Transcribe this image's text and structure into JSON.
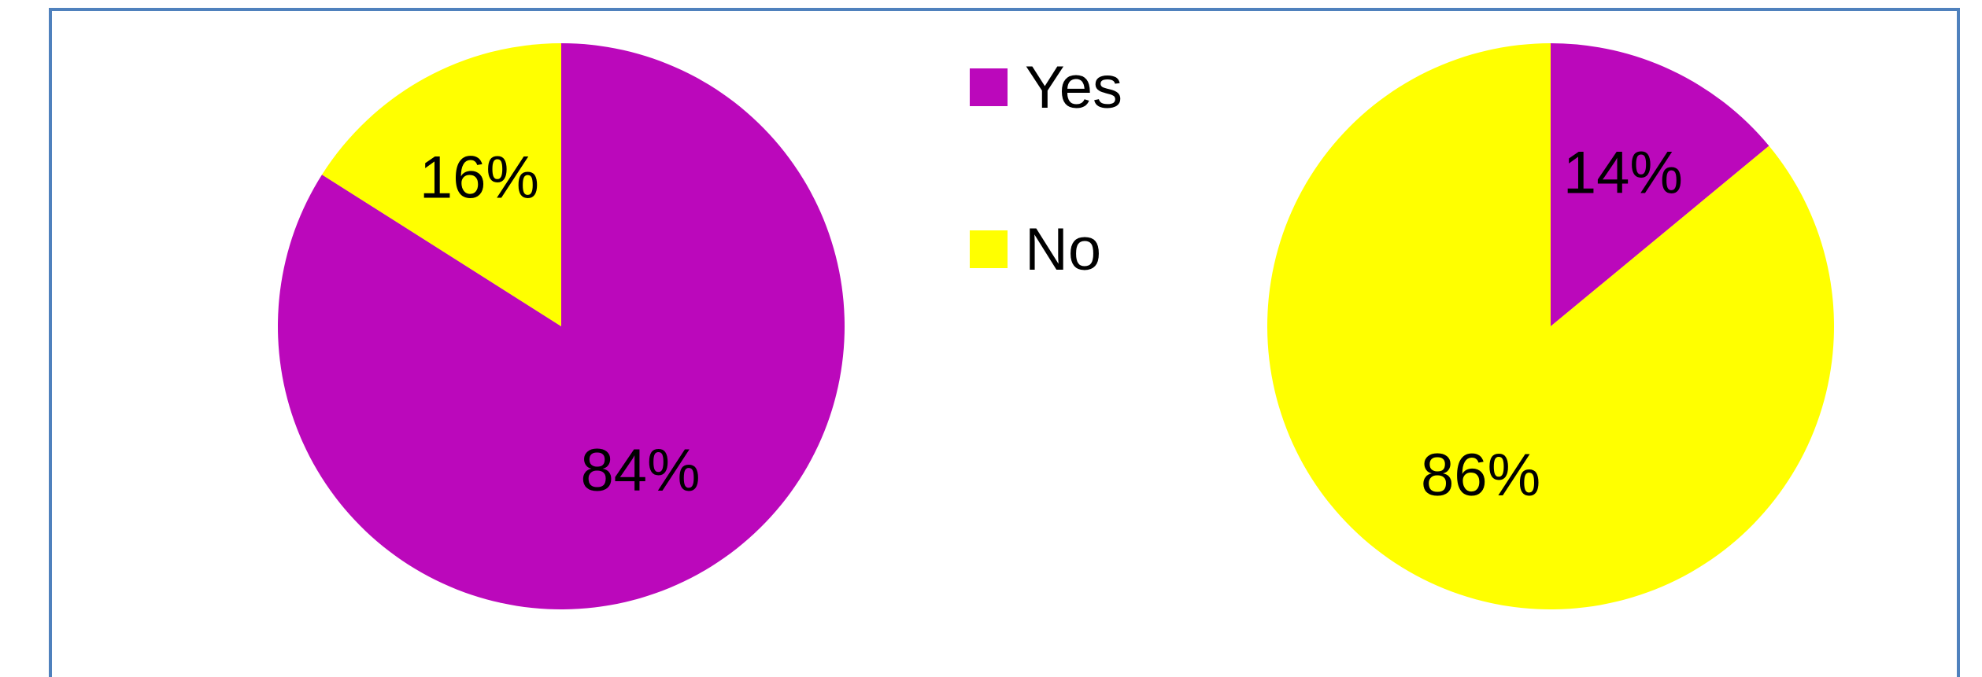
{
  "chart_data": [
    {
      "type": "pie",
      "categories": [
        "Yes",
        "No"
      ],
      "values": [
        84,
        16
      ],
      "labels": [
        "84%",
        "16%"
      ],
      "colors": [
        "#BB08BB",
        "#FFFF00"
      ]
    },
    {
      "type": "pie",
      "categories": [
        "Yes",
        "No"
      ],
      "values": [
        14,
        86
      ],
      "labels": [
        "14%",
        "86%"
      ],
      "colors": [
        "#BB08BB",
        "#FFFF00"
      ]
    }
  ],
  "legend": {
    "placement": "top-center",
    "items": [
      {
        "label": "Yes",
        "color": "#BB08BB"
      },
      {
        "label": "No",
        "color": "#FFFF00"
      }
    ]
  },
  "frame_color": "#4F81BD"
}
